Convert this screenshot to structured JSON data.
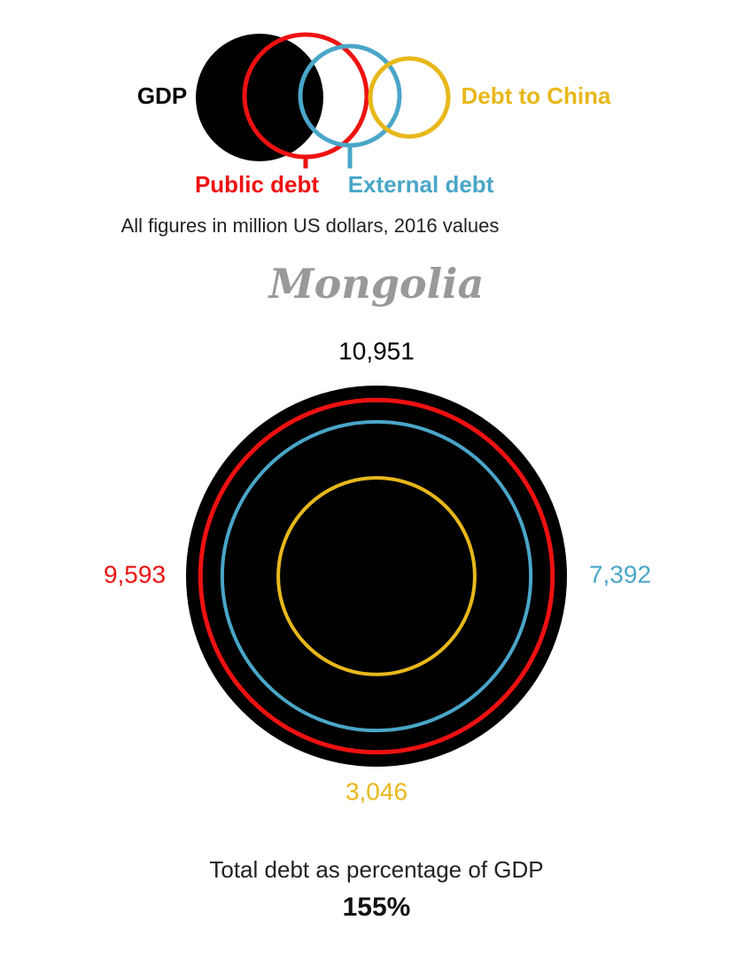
{
  "legend_note": "All figures in million US dollars, 2016 values",
  "chart_data": {
    "type": "nested-circles",
    "title": "Mongolia",
    "categories": [
      "GDP",
      "Public debt",
      "External debt",
      "Debt to China"
    ],
    "values": [
      10951,
      9593,
      7392,
      3046
    ],
    "value_labels": [
      "10,951",
      "9,593",
      "7,392",
      "3,046"
    ],
    "colors": [
      "#000000",
      "#ee1111",
      "#4aa6c8",
      "#e8b81a"
    ]
  },
  "footer": {
    "label": "Total debt as percentage of GDP",
    "value_text": "155%"
  }
}
